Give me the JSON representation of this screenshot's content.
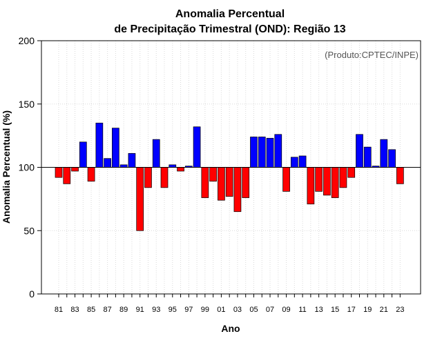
{
  "chart_data": {
    "type": "bar",
    "title_line1": "Anomalia Percentual",
    "title_line2": "de Precipitação Trimestral (OND): Região 13",
    "xlabel": "Ano",
    "ylabel": "Anomalia Percentual (%)",
    "credit": "(Produto:CPTEC/INPE)",
    "baseline": 100,
    "ylim": [
      0,
      200
    ],
    "yticks": [
      0,
      50,
      100,
      150,
      200
    ],
    "xtick_labels": [
      "81",
      "83",
      "85",
      "87",
      "89",
      "91",
      "93",
      "95",
      "97",
      "99",
      "01",
      "03",
      "05",
      "07",
      "09",
      "11",
      "13",
      "15",
      "17",
      "19",
      "21",
      "23"
    ],
    "colors": {
      "above": "#0000ff",
      "below": "#ff0000",
      "grid": "#d9d9d9",
      "baseline": "#000000"
    },
    "categories": [
      "1981",
      "1982",
      "1983",
      "1984",
      "1985",
      "1986",
      "1987",
      "1988",
      "1989",
      "1990",
      "1991",
      "1992",
      "1993",
      "1994",
      "1995",
      "1996",
      "1997",
      "1998",
      "1999",
      "2000",
      "2001",
      "2002",
      "2003",
      "2004",
      "2005",
      "2006",
      "2007",
      "2008",
      "2009",
      "2010",
      "2011",
      "2012",
      "2013",
      "2014",
      "2015",
      "2016",
      "2017",
      "2018",
      "2019",
      "2020",
      "2021",
      "2022",
      "2023"
    ],
    "values": [
      92,
      87,
      97,
      120,
      89,
      135,
      107,
      131,
      102,
      111,
      50,
      84,
      122,
      84,
      102,
      97,
      101,
      132,
      76,
      89,
      74,
      77,
      65,
      76,
      124,
      124,
      123,
      126,
      81,
      108,
      109,
      71,
      81,
      78,
      76,
      84,
      92,
      126,
      116,
      101,
      122,
      114,
      87
    ]
  }
}
